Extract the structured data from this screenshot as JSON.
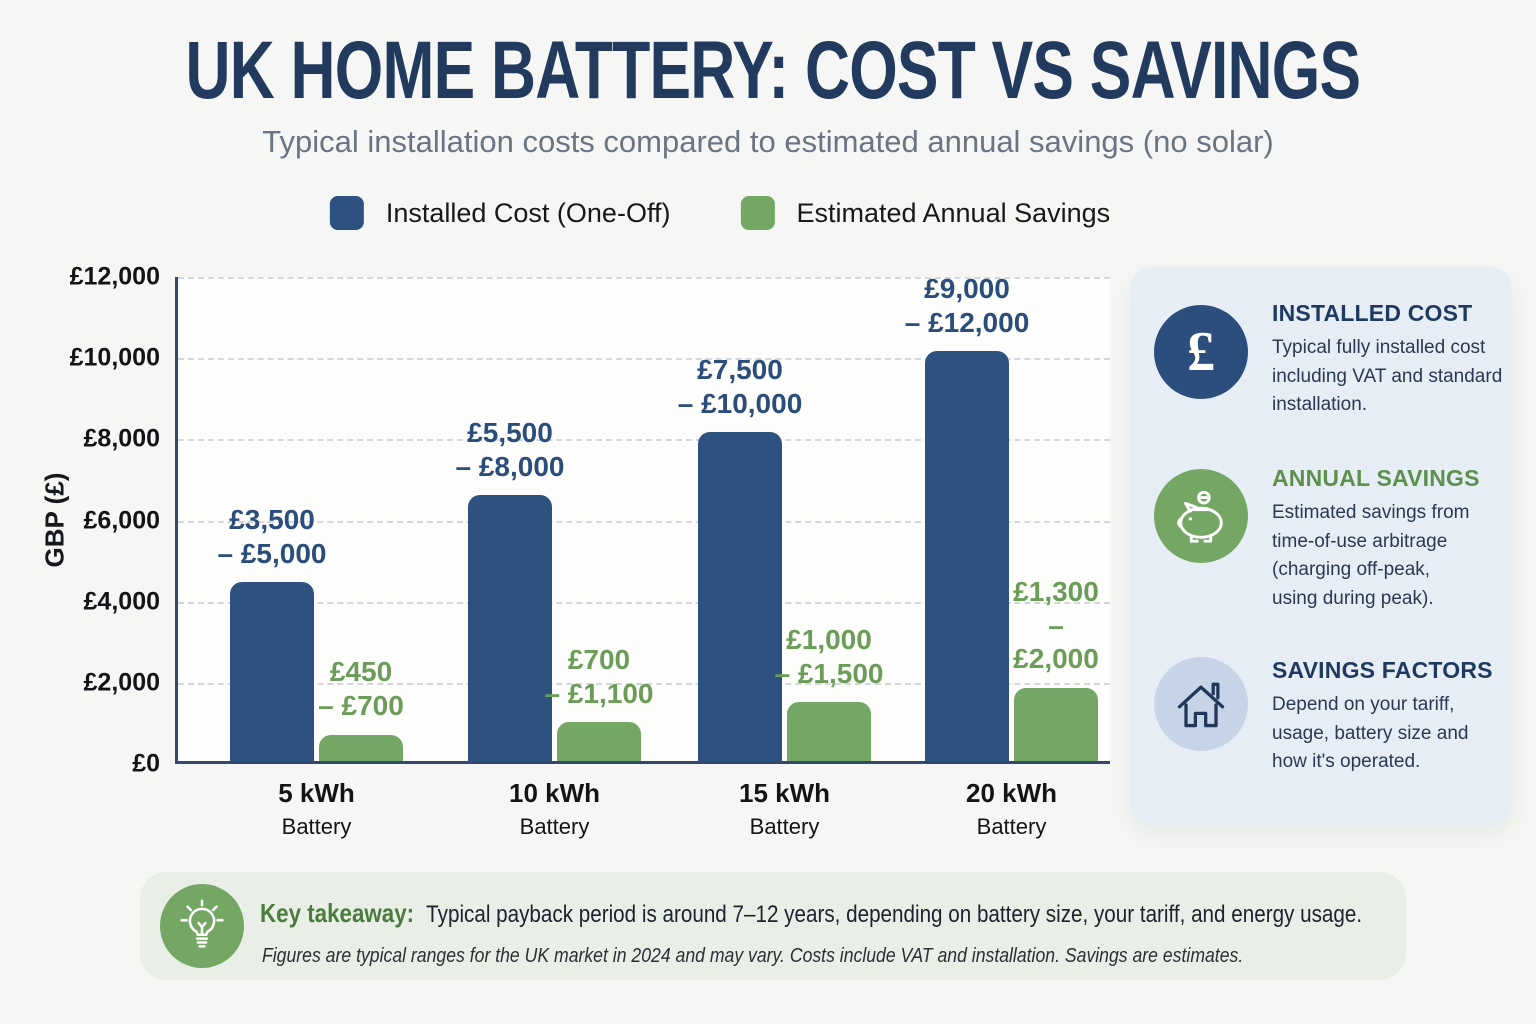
{
  "title": "UK HOME BATTERY: COST VS SAVINGS",
  "subtitle": "Typical installation costs compared to estimated annual savings (no solar)",
  "legend": {
    "items": [
      {
        "label": "Installed Cost (One-Off)",
        "color": "#2e527f"
      },
      {
        "label": "Estimated Annual Savings",
        "color": "#74a763"
      }
    ]
  },
  "chart_data": {
    "type": "bar",
    "title": "UK HOME BATTERY: COST VS SAVINGS",
    "subtitle": "Typical installation costs compared to estimated annual savings (no solar)",
    "ylabel": "GBP (£)",
    "ylim": [
      0,
      12000
    ],
    "ytick_step": 2000,
    "yticks": [
      "£0",
      "£2,000",
      "£4,000",
      "£6,000",
      "£8,000",
      "£10,000",
      "£12,000"
    ],
    "grid": "horizontal-dashed",
    "legend_position": "top",
    "categories": [
      {
        "size": "5 kWh",
        "sub": "Battery"
      },
      {
        "size": "10 kWh",
        "sub": "Battery"
      },
      {
        "size": "15 kWh",
        "sub": "Battery"
      },
      {
        "size": "20 kWh",
        "sub": "Battery"
      }
    ],
    "series": [
      {
        "name": "Installed Cost (One-Off)",
        "color": "#2e527f",
        "label_color": "#2a4d7c",
        "values": [
          4400,
          6550,
          8100,
          10100
        ],
        "range_labels": [
          [
            "£3,500",
            "– £5,000"
          ],
          [
            "£5,500",
            "– £8,000"
          ],
          [
            "£7,500",
            "– £10,000"
          ],
          [
            "£9,000",
            "– £12,000"
          ]
        ]
      },
      {
        "name": "Estimated Annual Savings",
        "color": "#74a763",
        "label_color": "#6b9d59",
        "values": [
          650,
          950,
          1450,
          1800
        ],
        "range_labels": [
          [
            "£450",
            "– £700"
          ],
          [
            "£700",
            "– £1,100"
          ],
          [
            "£1,000",
            "– £1,500"
          ],
          [
            "£1,300",
            "– £2,000"
          ]
        ]
      }
    ]
  },
  "info_panel": {
    "items": [
      {
        "icon": "pound-icon",
        "heading": "INSTALLED COST",
        "heading_color": "#1f3a5f",
        "circle_color": "#2b4e7d",
        "body": [
          "Typical fully installed cost",
          "including VAT and standard",
          "installation."
        ]
      },
      {
        "icon": "piggy-bank-icon",
        "heading": "ANNUAL SAVINGS",
        "heading_color": "#5d904c",
        "circle_color": "#74a763",
        "body": [
          "Estimated savings from",
          "time-of-use arbitrage",
          "(charging off-peak,",
          "using during peak)."
        ]
      },
      {
        "icon": "house-icon",
        "heading": "SAVINGS FACTORS",
        "heading_color": "#1f3a5f",
        "circle_color": "#c7d4e8",
        "body": [
          "Depend on your tariff,",
          "usage, battery size and",
          "how it's operated."
        ]
      }
    ]
  },
  "takeaway": {
    "icon": "lightbulb-icon",
    "circle_color": "#74a763",
    "lead": "Key takeaway:",
    "lead_color": "#4a7c3e",
    "text": "Typical payback period is around 7–12 years, depending on battery size, your tariff, and energy usage.",
    "footnote": "Figures are typical ranges for the UK market in 2024 and may vary. Costs include VAT and installation. Savings are estimates."
  },
  "colors": {
    "page_bg": "#f6f7f4",
    "plot_bg": "#fdfdfc",
    "axis": "#33486b",
    "gridline": "#d4d7da",
    "title": "#223a5e",
    "subtitle": "#6a7482",
    "panel_bg": "#e6edf5",
    "takeaway_bg": "#e9efe6"
  }
}
